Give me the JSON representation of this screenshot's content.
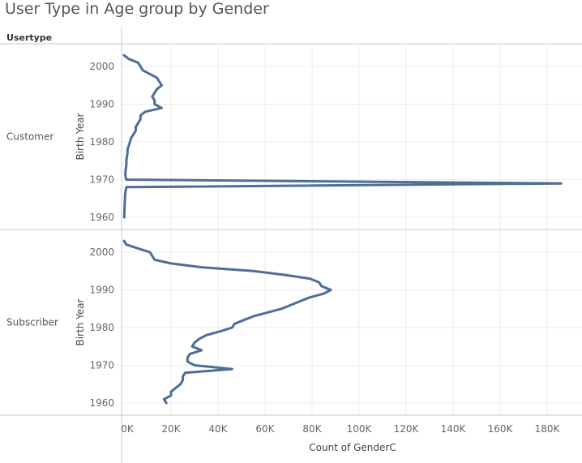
{
  "title": "User Type in Age group by Gender",
  "row_header": "Usertype",
  "chart_data": {
    "type": "line",
    "title": "User Type in Age group by Gender",
    "xlabel": "Count of GenderC",
    "ylabel": "Birth Year",
    "xlim": [
      0,
      190000
    ],
    "x_ticks": [
      0,
      20000,
      40000,
      60000,
      80000,
      100000,
      120000,
      140000,
      160000,
      180000
    ],
    "x_tick_labels": [
      "0K",
      "20K",
      "40K",
      "60K",
      "80K",
      "100K",
      "120K",
      "140K",
      "160K",
      "180K"
    ],
    "y_ticks": [
      1960,
      1970,
      1980,
      1990,
      2000
    ],
    "grid": true,
    "panels": [
      {
        "name": "Customer",
        "ylim": [
          1958.5,
          2003.5
        ],
        "points": [
          {
            "year": 2003,
            "count": 0
          },
          {
            "year": 2002,
            "count": 2000
          },
          {
            "year": 2001,
            "count": 6000
          },
          {
            "year": 2000,
            "count": 7000
          },
          {
            "year": 1999,
            "count": 8000
          },
          {
            "year": 1998,
            "count": 11000
          },
          {
            "year": 1997,
            "count": 14000
          },
          {
            "year": 1996,
            "count": 15000
          },
          {
            "year": 1995,
            "count": 16000
          },
          {
            "year": 1994,
            "count": 14000
          },
          {
            "year": 1993,
            "count": 13000
          },
          {
            "year": 1992,
            "count": 12000
          },
          {
            "year": 1991,
            "count": 13000
          },
          {
            "year": 1990,
            "count": 13000
          },
          {
            "year": 1989,
            "count": 16000
          },
          {
            "year": 1988,
            "count": 9000
          },
          {
            "year": 1987,
            "count": 7000
          },
          {
            "year": 1986,
            "count": 7000
          },
          {
            "year": 1985,
            "count": 6000
          },
          {
            "year": 1984,
            "count": 5000
          },
          {
            "year": 1983,
            "count": 5000
          },
          {
            "year": 1982,
            "count": 4000
          },
          {
            "year": 1981,
            "count": 3000
          },
          {
            "year": 1980,
            "count": 2500
          },
          {
            "year": 1979,
            "count": 2000
          },
          {
            "year": 1978,
            "count": 1500
          },
          {
            "year": 1977,
            "count": 1500
          },
          {
            "year": 1976,
            "count": 1200
          },
          {
            "year": 1975,
            "count": 1000
          },
          {
            "year": 1974,
            "count": 1000
          },
          {
            "year": 1973,
            "count": 800
          },
          {
            "year": 1972,
            "count": 600
          },
          {
            "year": 1971,
            "count": 600
          },
          {
            "year": 1970,
            "count": 1000
          },
          {
            "year": 1969,
            "count": 186000
          },
          {
            "year": 1968,
            "count": 1000
          },
          {
            "year": 1967,
            "count": 700
          },
          {
            "year": 1966,
            "count": 500
          },
          {
            "year": 1965,
            "count": 400
          },
          {
            "year": 1964,
            "count": 300
          },
          {
            "year": 1963,
            "count": 250
          },
          {
            "year": 1962,
            "count": 200
          },
          {
            "year": 1961,
            "count": 150
          },
          {
            "year": 1960,
            "count": 100
          }
        ]
      },
      {
        "name": "Subscriber",
        "ylim": [
          1958.5,
          2003.5
        ],
        "points": [
          {
            "year": 2003,
            "count": 0
          },
          {
            "year": 2002,
            "count": 1000
          },
          {
            "year": 2001,
            "count": 6000
          },
          {
            "year": 2000,
            "count": 11000
          },
          {
            "year": 1999,
            "count": 12000
          },
          {
            "year": 1998,
            "count": 13000
          },
          {
            "year": 1997,
            "count": 20000
          },
          {
            "year": 1996,
            "count": 33000
          },
          {
            "year": 1995,
            "count": 55000
          },
          {
            "year": 1994,
            "count": 68000
          },
          {
            "year": 1993,
            "count": 79000
          },
          {
            "year": 1992,
            "count": 83000
          },
          {
            "year": 1991,
            "count": 84000
          },
          {
            "year": 1990,
            "count": 88000
          },
          {
            "year": 1989,
            "count": 85000
          },
          {
            "year": 1988,
            "count": 79000
          },
          {
            "year": 1987,
            "count": 75000
          },
          {
            "year": 1986,
            "count": 71000
          },
          {
            "year": 1985,
            "count": 67000
          },
          {
            "year": 1984,
            "count": 61000
          },
          {
            "year": 1983,
            "count": 55000
          },
          {
            "year": 1982,
            "count": 51000
          },
          {
            "year": 1981,
            "count": 47000
          },
          {
            "year": 1980,
            "count": 46000
          },
          {
            "year": 1979,
            "count": 41000
          },
          {
            "year": 1978,
            "count": 35000
          },
          {
            "year": 1977,
            "count": 32000
          },
          {
            "year": 1976,
            "count": 30000
          },
          {
            "year": 1975,
            "count": 29000
          },
          {
            "year": 1974,
            "count": 33000
          },
          {
            "year": 1973,
            "count": 28000
          },
          {
            "year": 1972,
            "count": 27000
          },
          {
            "year": 1971,
            "count": 27000
          },
          {
            "year": 1970,
            "count": 30000
          },
          {
            "year": 1969,
            "count": 46000
          },
          {
            "year": 1968,
            "count": 26000
          },
          {
            "year": 1967,
            "count": 25000
          },
          {
            "year": 1966,
            "count": 25000
          },
          {
            "year": 1965,
            "count": 24000
          },
          {
            "year": 1964,
            "count": 22000
          },
          {
            "year": 1963,
            "count": 20000
          },
          {
            "year": 1962,
            "count": 20000
          },
          {
            "year": 1961,
            "count": 17000
          },
          {
            "year": 1960,
            "count": 18000
          }
        ]
      }
    ],
    "colors": {
      "line": "#4e6e96",
      "grid": "#ececec",
      "axis": "#c8c8c8",
      "text": "#666666"
    }
  }
}
